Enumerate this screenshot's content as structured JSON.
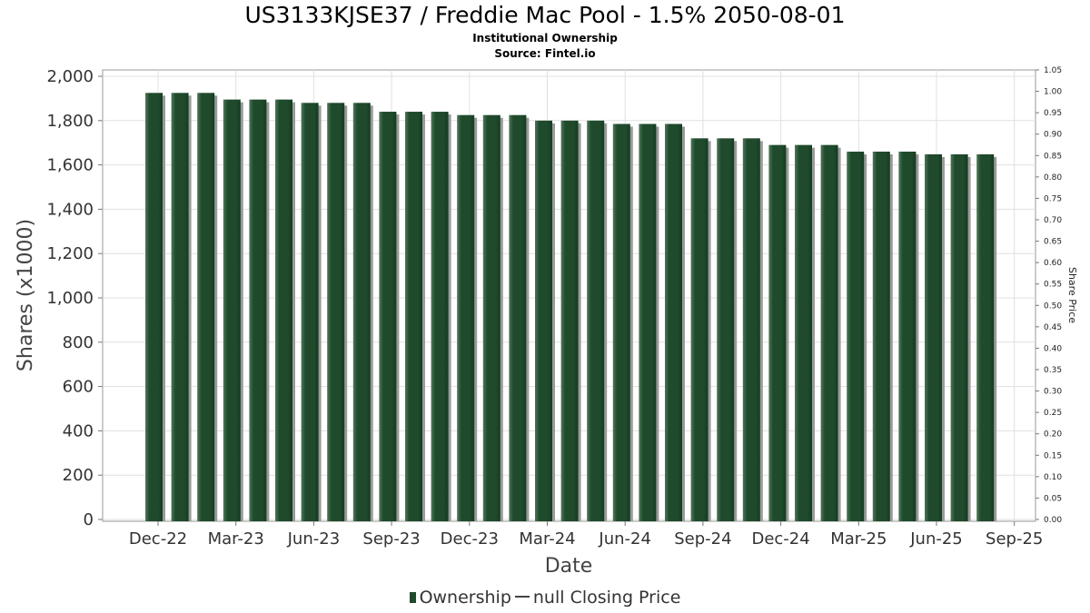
{
  "title": "US3133KJSE37 / Freddie Mac Pool - 1.5% 2050-08-01",
  "subtitle": "Institutional Ownership",
  "source": "Source: Fintel.io",
  "legend": {
    "ownership": "Ownership",
    "price": "null Closing Price"
  },
  "colors": {
    "bar": "#1f4a2c",
    "bar_highlight": "#4a7a55",
    "bar_shadow": "#9a9a9a",
    "grid": "#e0e0e0"
  },
  "chart_data": {
    "type": "bar",
    "xlabel": "Date",
    "ylabel": "Shares (x1000)",
    "y2label": "Share Price",
    "ylim": [
      0,
      2000
    ],
    "y2lim": [
      0,
      1.05
    ],
    "yticks": [
      0,
      200,
      400,
      600,
      800,
      1000,
      1200,
      1400,
      1600,
      1800,
      2000
    ],
    "ytick_labels": [
      "0",
      "200",
      "400",
      "600",
      "800",
      "1,000",
      "1,200",
      "1,400",
      "1,600",
      "1,800",
      "2,000"
    ],
    "y2ticks": [
      "0.00",
      "0.05",
      "0.10",
      "0.15",
      "0.20",
      "0.25",
      "0.30",
      "0.35",
      "0.40",
      "0.45",
      "0.50",
      "0.55",
      "0.60",
      "0.65",
      "0.70",
      "0.75",
      "0.80",
      "0.85",
      "0.90",
      "0.95",
      "1.00",
      "1.05"
    ],
    "xtick_labels": [
      "Dec-22",
      "Mar-23",
      "Jun-23",
      "Sep-23",
      "Dec-23",
      "Mar-24",
      "Jun-24",
      "Sep-24",
      "Dec-24",
      "Mar-25",
      "Jun-25",
      "Sep-25"
    ],
    "grid": true,
    "legend_position": "bottom",
    "series": [
      {
        "name": "Ownership",
        "values": [
          1925,
          1925,
          1925,
          1895,
          1895,
          1895,
          1880,
          1880,
          1880,
          1840,
          1840,
          1840,
          1825,
          1825,
          1825,
          1800,
          1800,
          1800,
          1785,
          1785,
          1785,
          1720,
          1720,
          1720,
          1690,
          1690,
          1690,
          1660,
          1660,
          1660,
          1648,
          1648,
          1648
        ]
      }
    ]
  }
}
